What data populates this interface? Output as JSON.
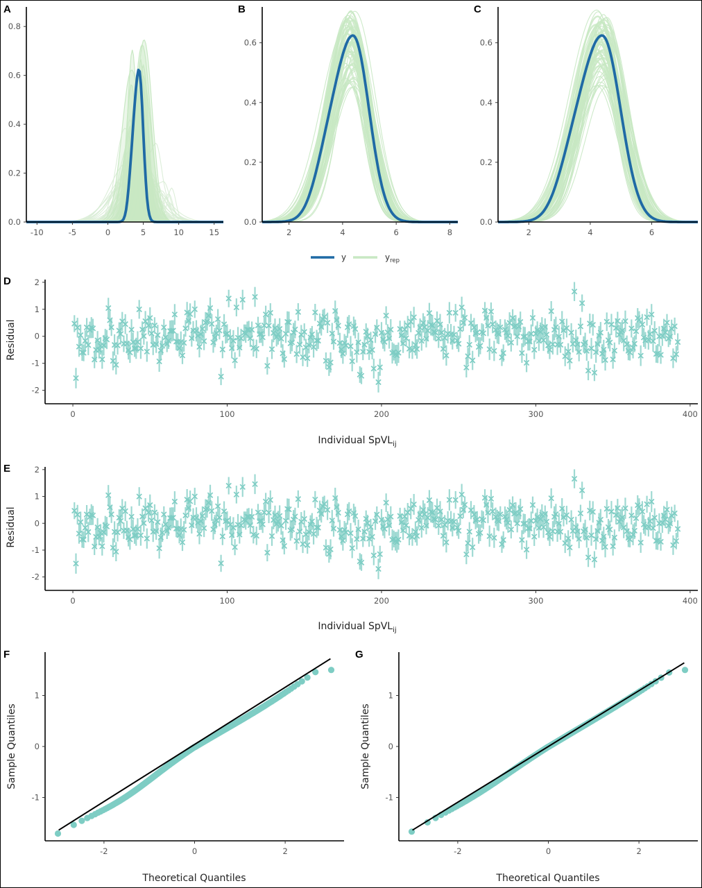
{
  "colors": {
    "y": "#1f6aa5",
    "yrep": "#c8e8c3",
    "resid": "#7ecdc4",
    "line": "#000000"
  },
  "legend": {
    "items": [
      {
        "key": "y",
        "label": "y",
        "sub": ""
      },
      {
        "key": "yrep",
        "label": "y",
        "sub": "rep"
      }
    ],
    "placement": "bottom-center"
  },
  "chart_data": [
    {
      "id": "A",
      "panel_label": "A",
      "type": "area",
      "xlim": [
        -11.5,
        16.3
      ],
      "ylim": [
        0,
        0.88
      ],
      "xticks": [
        -10,
        -5,
        0,
        5,
        10,
        15
      ],
      "yticks": [
        0.0,
        0.2,
        0.4,
        0.6,
        0.8
      ],
      "y": {
        "mean": 4.4,
        "sd": 0.64,
        "peak": 0.62
      },
      "yrep": {
        "n": 40,
        "center_range": [
          2.4,
          5.2
        ],
        "sd_range": [
          0.45,
          3.0
        ],
        "peak_range": [
          0.12,
          0.86
        ]
      }
    },
    {
      "id": "B",
      "panel_label": "B",
      "type": "line",
      "xlim": [
        1.0,
        8.3
      ],
      "ylim": [
        0,
        0.72
      ],
      "xticks": [
        2,
        4,
        6,
        8
      ],
      "yticks": [
        0.0,
        0.2,
        0.4,
        0.6
      ],
      "y": {
        "mean": 4.4,
        "sd": 0.64,
        "peak": 0.62
      },
      "yrep": {
        "n": 40,
        "center_range": [
          4.1,
          4.6
        ],
        "sd_range": [
          0.58,
          0.85
        ],
        "peak_range": [
          0.45,
          0.71
        ]
      }
    },
    {
      "id": "C",
      "panel_label": "C",
      "type": "line",
      "xlim": [
        1.0,
        7.5
      ],
      "ylim": [
        0,
        0.72
      ],
      "xticks": [
        2,
        4,
        6
      ],
      "yticks": [
        0.0,
        0.2,
        0.4,
        0.6
      ],
      "y": {
        "mean": 4.4,
        "sd": 0.64,
        "peak": 0.62
      },
      "yrep": {
        "n": 40,
        "center_range": [
          4.2,
          4.6
        ],
        "sd_range": [
          0.58,
          0.82
        ],
        "peak_range": [
          0.45,
          0.71
        ]
      }
    },
    {
      "id": "D",
      "panel_label": "D",
      "type": "scatter",
      "xlabel": "Individual SpVL",
      "xlabel_sub": "ij",
      "ylabel": "Residual",
      "xlim": [
        -18,
        405
      ],
      "ylim": [
        -2.5,
        2.1
      ],
      "xticks": [
        0,
        100,
        200,
        300,
        400
      ],
      "yticks": [
        -2,
        -1,
        0,
        1,
        2
      ],
      "n": 392,
      "error_halfwidth": 0.3
    },
    {
      "id": "E",
      "panel_label": "E",
      "type": "scatter",
      "xlabel": "Individual SpVL",
      "xlabel_sub": "ij",
      "ylabel": "Residual",
      "xlim": [
        -18,
        405
      ],
      "ylim": [
        -2.5,
        2.1
      ],
      "xticks": [
        0,
        100,
        200,
        300,
        400
      ],
      "yticks": [
        -2,
        -1,
        0,
        1,
        2
      ],
      "n": 392,
      "error_halfwidth": 0.3
    },
    {
      "id": "F",
      "panel_label": "F",
      "type": "scatter",
      "xlabel": "Theoretical Quantiles",
      "ylabel": "Sample Quantiles",
      "xlim": [
        -3.3,
        3.3
      ],
      "ylim": [
        -1.85,
        1.85
      ],
      "xticks": [
        -2,
        0,
        2
      ],
      "yticks": [
        -1,
        0,
        1
      ],
      "reference_line": {
        "x": [
          -3,
          3
        ],
        "y": [
          -1.64,
          1.72
        ]
      },
      "n": 392,
      "sd": 0.56,
      "lower_bow": 0.14
    },
    {
      "id": "G",
      "panel_label": "G",
      "type": "scatter",
      "xlabel": "Theoretical Quantiles",
      "ylabel": "Sample Quantiles",
      "xlim": [
        -3.3,
        3.3
      ],
      "ylim": [
        -1.85,
        1.85
      ],
      "xticks": [
        -2,
        0,
        2
      ],
      "yticks": [
        -1,
        0,
        1
      ],
      "reference_line": {
        "x": [
          -3,
          3
        ],
        "y": [
          -1.64,
          1.64
        ]
      },
      "n": 392,
      "sd": 0.55,
      "lower_bow": 0.07
    }
  ]
}
